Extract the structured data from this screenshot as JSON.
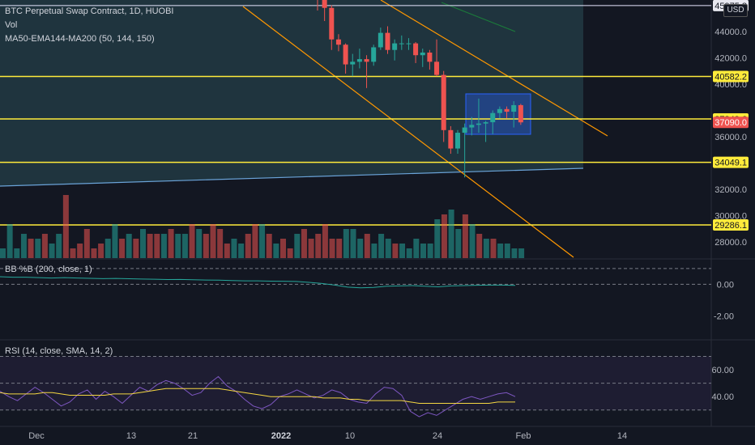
{
  "header": {
    "symbol_line": "BTC Perpetual Swap Contract, 1D, HUOBI",
    "vol_label": "Vol",
    "ma_label": "MA50-EMA144-MA200 (50, 144, 150)",
    "currency": "USD"
  },
  "panes": {
    "bb_label": "BB %B (200, close, 1)",
    "rsi_label": "RSI (14, close, SMA, 14, 2)"
  },
  "colors": {
    "bull": "#26a69a",
    "bear": "#ef5350",
    "level": "#ffeb3b",
    "channel": "#ff9800",
    "rsi": "#7e57c2",
    "rsi_sma": "#f5d742",
    "bb": "#26a69a"
  },
  "chart_data": [
    {
      "type": "candlestick",
      "title": "BTC Perpetual Swap Contract, 1D, HUOBI",
      "x_ticks": [
        "Dec",
        "13",
        "21",
        "2022",
        "10",
        "24",
        "Feb",
        "14"
      ],
      "y_ticks": [
        28000,
        30000,
        32000,
        36000,
        40000,
        42000,
        44000
      ],
      "ylim": [
        26700,
        46400
      ],
      "price_levels": [
        {
          "label": "40582.2",
          "value": 40582.2,
          "color": "#ffeb3b"
        },
        {
          "label": "37349.6",
          "value": 37349.6,
          "color": "#ffeb3b"
        },
        {
          "label": "37090.0",
          "value": 37090.0,
          "color": "#ef5350",
          "current": true
        },
        {
          "label": "34049.1",
          "value": 34049.1,
          "color": "#ffeb3b"
        },
        {
          "label": "29286.1",
          "value": 29286.1,
          "color": "#ffeb3b"
        },
        {
          "label": "45975.8",
          "value": 45975.8,
          "color": "#ffffff"
        }
      ],
      "candles": [
        {
          "date": "2022-01-03",
          "open": 46900,
          "high": 47600,
          "low": 45600,
          "close": 46400
        },
        {
          "date": "2022-01-04",
          "open": 46400,
          "high": 46800,
          "low": 44800,
          "close": 45800
        },
        {
          "date": "2022-01-05",
          "open": 45800,
          "high": 46000,
          "low": 42600,
          "close": 43400
        },
        {
          "date": "2022-01-06",
          "open": 43400,
          "high": 43800,
          "low": 42500,
          "close": 43000
        },
        {
          "date": "2022-01-07",
          "open": 43000,
          "high": 43100,
          "low": 40800,
          "close": 41500
        },
        {
          "date": "2022-01-08",
          "open": 41500,
          "high": 42300,
          "low": 40600,
          "close": 41700
        },
        {
          "date": "2022-01-09",
          "open": 41700,
          "high": 42700,
          "low": 41200,
          "close": 41900
        },
        {
          "date": "2022-01-10",
          "open": 41900,
          "high": 42200,
          "low": 39700,
          "close": 41700
        },
        {
          "date": "2022-01-11",
          "open": 41700,
          "high": 43000,
          "low": 41400,
          "close": 42800
        },
        {
          "date": "2022-01-12",
          "open": 42800,
          "high": 44300,
          "low": 42600,
          "close": 43900
        },
        {
          "date": "2022-01-13",
          "open": 43900,
          "high": 44400,
          "low": 42300,
          "close": 42600
        },
        {
          "date": "2022-01-14",
          "open": 42600,
          "high": 43400,
          "low": 41800,
          "close": 43100
        },
        {
          "date": "2022-01-15",
          "open": 43100,
          "high": 43700,
          "low": 42600,
          "close": 43100
        },
        {
          "date": "2022-01-16",
          "open": 43100,
          "high": 43500,
          "low": 42600,
          "close": 43100
        },
        {
          "date": "2022-01-17",
          "open": 43100,
          "high": 43200,
          "low": 41600,
          "close": 42200
        },
        {
          "date": "2022-01-18",
          "open": 42200,
          "high": 42700,
          "low": 41300,
          "close": 42400
        },
        {
          "date": "2022-01-19",
          "open": 42400,
          "high": 42600,
          "low": 41100,
          "close": 41700
        },
        {
          "date": "2022-01-20",
          "open": 41700,
          "high": 43400,
          "low": 40600,
          "close": 40700
        },
        {
          "date": "2022-01-21",
          "open": 40700,
          "high": 41000,
          "low": 35600,
          "close": 36500
        },
        {
          "date": "2022-01-22",
          "open": 36500,
          "high": 36800,
          "low": 34700,
          "close": 35100
        },
        {
          "date": "2022-01-23",
          "open": 35100,
          "high": 36500,
          "low": 34700,
          "close": 36300
        },
        {
          "date": "2022-01-24",
          "open": 36300,
          "high": 37000,
          "low": 32900,
          "close": 36700
        },
        {
          "date": "2022-01-25",
          "open": 36700,
          "high": 37500,
          "low": 36100,
          "close": 36900
        },
        {
          "date": "2022-01-26",
          "open": 36900,
          "high": 38900,
          "low": 36300,
          "close": 37000
        },
        {
          "date": "2022-01-27",
          "open": 37000,
          "high": 37200,
          "low": 35600,
          "close": 37100
        },
        {
          "date": "2022-01-28",
          "open": 37100,
          "high": 38000,
          "low": 36200,
          "close": 37800
        },
        {
          "date": "2022-01-29",
          "open": 37800,
          "high": 38300,
          "low": 37400,
          "close": 38100
        },
        {
          "date": "2022-01-30",
          "open": 38100,
          "high": 38300,
          "low": 37400,
          "close": 37900
        },
        {
          "date": "2022-01-31",
          "open": 37900,
          "high": 38700,
          "low": 36700,
          "close": 38400
        },
        {
          "date": "2022-02-01",
          "open": 38400,
          "high": 38500,
          "low": 36900,
          "close": 37090
        }
      ],
      "volume": [
        5,
        7,
        4,
        4,
        6,
        6,
        4,
        5,
        3,
        5,
        4,
        3,
        3,
        2,
        4,
        3,
        3,
        8,
        9,
        10,
        6,
        9,
        7,
        5,
        4,
        4,
        3,
        3,
        2,
        2
      ]
    },
    {
      "type": "line",
      "title": "BB %B (200, close, 1)",
      "y_ticks": [
        0.0,
        -2.0
      ],
      "ylim": [
        -3.2,
        1.4
      ],
      "series": [
        {
          "values": [
            0.48,
            0.45,
            0.45,
            0.42,
            0.4,
            0.42,
            0.4,
            0.38,
            0.36,
            0.37,
            0.35,
            0.33,
            0.32,
            0.3,
            0.31,
            0.29,
            0.27,
            0.26,
            0.24,
            0.22,
            0.22,
            0.2,
            0.19,
            0.18,
            0.12,
            0.05,
            -0.05,
            -0.18,
            -0.22,
            -0.2,
            -0.12,
            -0.1,
            -0.08,
            -0.12,
            -0.16,
            -0.1,
            -0.08,
            -0.06,
            -0.05,
            -0.05,
            -0.07
          ]
        }
      ]
    },
    {
      "type": "line",
      "title": "RSI (14, close, SMA, 14, 2)",
      "y_ticks": [
        60.0,
        40.0
      ],
      "ylim": [
        22,
        80
      ],
      "series": [
        {
          "values": [
            44,
            40,
            37,
            42,
            47,
            43,
            38,
            33,
            36,
            42,
            45,
            38,
            44,
            40,
            35,
            41,
            47,
            44,
            49,
            52,
            50,
            46,
            41,
            43,
            50,
            55,
            48,
            44,
            38,
            33,
            31,
            34,
            40,
            42,
            45,
            42,
            39,
            41,
            45,
            43,
            38,
            36,
            35,
            42,
            47,
            46,
            41,
            29,
            25,
            28,
            26,
            30,
            34,
            38,
            40,
            38,
            40,
            42,
            43,
            40
          ]
        },
        {
          "values": [
            43,
            42,
            42,
            42,
            42,
            43,
            43,
            42,
            41,
            41,
            41,
            41,
            41,
            42,
            42,
            42,
            43,
            44,
            45,
            46,
            46,
            46,
            46,
            46,
            46,
            46,
            45,
            44,
            43,
            42,
            41,
            40,
            40,
            40,
            40,
            40,
            40,
            39,
            39,
            39,
            38,
            38,
            37,
            37,
            37,
            37,
            37,
            36,
            35,
            35,
            35,
            35,
            35,
            35,
            35,
            35,
            35,
            36,
            36,
            36
          ]
        }
      ]
    }
  ]
}
